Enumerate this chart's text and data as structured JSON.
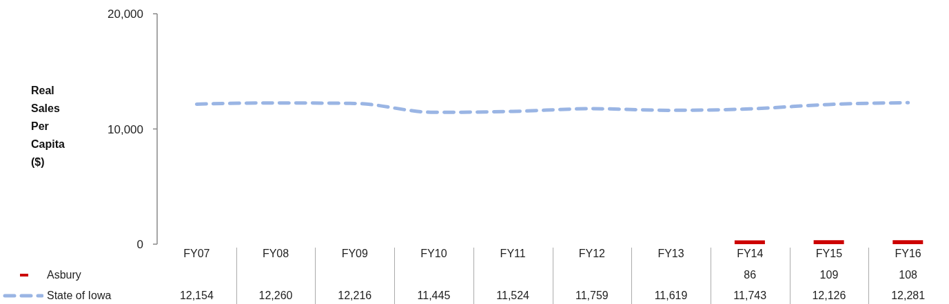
{
  "chart_data": {
    "type": "line",
    "ylabel": "Real Sales Per Capita ($)",
    "categories": [
      "FY07",
      "FY08",
      "FY09",
      "FY10",
      "FY11",
      "FY12",
      "FY13",
      "FY14",
      "FY15",
      "FY16"
    ],
    "series": [
      {
        "name": "Asbury",
        "type": "bar",
        "color": "#cc0000",
        "values": [
          null,
          null,
          null,
          null,
          null,
          null,
          null,
          86,
          109,
          108
        ],
        "value_labels": [
          null,
          null,
          null,
          null,
          null,
          null,
          null,
          "86",
          "109",
          "108"
        ]
      },
      {
        "name": "State of Iowa",
        "color": "#9ab5e4",
        "line_style": "dashed",
        "values": [
          12154,
          12260,
          12216,
          11445,
          11524,
          11759,
          11619,
          11743,
          12126,
          12281
        ],
        "value_labels": [
          "12,154",
          "12,260",
          "12,216",
          "11,445",
          "11,524",
          "11,759",
          "11,619",
          "11,743",
          "12,126",
          "12,281"
        ]
      }
    ],
    "ylim": [
      0,
      20000
    ],
    "yticks": [
      0,
      {
        "value": 10000,
        "label": "10,000"
      },
      {
        "value": 20000,
        "label": "20,000"
      }
    ],
    "legend": "bottom"
  }
}
